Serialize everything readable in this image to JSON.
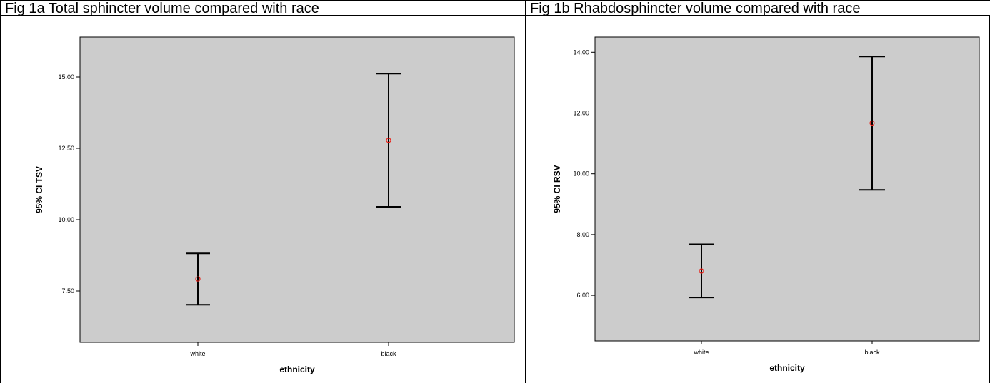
{
  "chart_data": [
    {
      "type": "errorbar",
      "title": "Fig 1a Total sphincter volume compared with race",
      "xlabel": "ethnicity",
      "ylabel": "95% CI TSV",
      "categories": [
        "white",
        "black"
      ],
      "means": [
        7.92,
        12.78
      ],
      "lower": [
        7.02,
        10.45
      ],
      "upper": [
        8.82,
        15.12
      ],
      "yticks": [
        "7.50",
        "10.00",
        "12.50",
        "15.00"
      ],
      "ytick_values": [
        7.5,
        10.0,
        12.5,
        15.0
      ],
      "ylim": [
        5.7,
        16.4
      ],
      "grid": false,
      "background": "#cccccc",
      "mean_marker_color": "#e8231a"
    },
    {
      "type": "errorbar",
      "title": "Fig 1b Rhabdosphincter volume compared with race",
      "xlabel": "ethnicity",
      "ylabel": "95% CI RSV",
      "categories": [
        "white",
        "black"
      ],
      "means": [
        6.8,
        11.67
      ],
      "lower": [
        5.93,
        9.47
      ],
      "upper": [
        7.68,
        13.86
      ],
      "yticks": [
        "6.00",
        "8.00",
        "10.00",
        "12.00",
        "14.00"
      ],
      "ytick_values": [
        6.0,
        8.0,
        10.0,
        12.0,
        14.0
      ],
      "ylim": [
        4.5,
        14.5
      ],
      "grid": false,
      "background": "#cccccc",
      "mean_marker_color": "#e8231a"
    }
  ]
}
